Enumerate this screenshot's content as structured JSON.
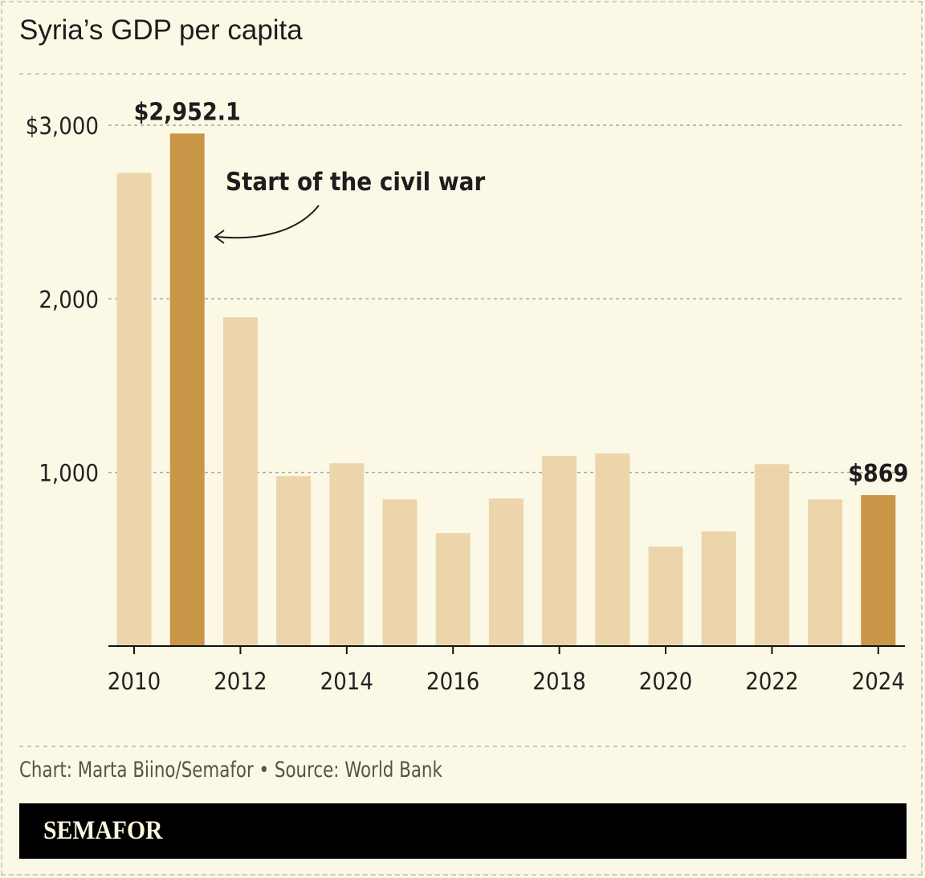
{
  "title": "Syria’s GDP per capita",
  "credit": "Chart: Marta Biino/Semafor • Source: World Bank",
  "footer": {
    "logo": "SEMAFOR"
  },
  "colors": {
    "background": "#fbf9e6",
    "bar": "#ecd5ab",
    "highlight": "#c99547",
    "text": "#1d1d1d"
  },
  "chart_data": {
    "type": "bar",
    "title": "Syria’s GDP per capita",
    "categories": [
      "2010",
      "2011",
      "2012",
      "2013",
      "2014",
      "2015",
      "2016",
      "2017",
      "2018",
      "2019",
      "2020",
      "2021",
      "2022",
      "2023",
      "2024"
    ],
    "values": [
      2725,
      2952.1,
      1894,
      979,
      1053,
      845,
      651,
      850,
      1095,
      1109,
      573,
      660,
      1048,
      845,
      869
    ],
    "highlighted": [
      "2011",
      "2024"
    ],
    "ylim": [
      0,
      3000
    ],
    "yticks": [
      {
        "value": 1000,
        "label": "1,000"
      },
      {
        "value": 2000,
        "label": "2,000"
      },
      {
        "value": 3000,
        "label": "$3,000"
      }
    ],
    "xticks": [
      "2010",
      "2012",
      "2014",
      "2016",
      "2018",
      "2020",
      "2022",
      "2024"
    ],
    "grid": true,
    "data_labels": [
      {
        "category": "2011",
        "label": "$2,952.1"
      },
      {
        "category": "2024",
        "label": "$869"
      }
    ],
    "annotations": [
      {
        "category": "2011",
        "text": "Start of the civil war"
      }
    ]
  }
}
